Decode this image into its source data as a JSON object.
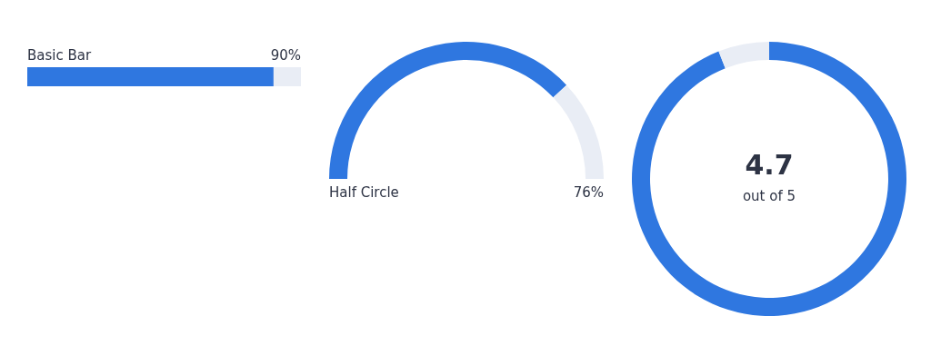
{
  "chart_data": [
    {
      "type": "bar",
      "orientation": "horizontal",
      "stacked": true,
      "categories": [
        "Basic Bar"
      ],
      "xlim": [
        0,
        100
      ],
      "tick_labels": false,
      "series": [
        {
          "color": "#2f77e0",
          "values": [
            90
          ],
          "value_labels": [
            "90%"
          ]
        },
        {
          "color": "#e9edf5",
          "values": [
            10
          ]
        }
      ]
    },
    {
      "type": "donut",
      "title": "Half Circle",
      "categories": [
        null,
        null
      ],
      "values": [
        76,
        24
      ],
      "colors": [
        "#2f77e0",
        "#e9edf5"
      ],
      "annotations": [
        "76%"
      ]
    },
    {
      "type": "donut",
      "categories": [
        null,
        null
      ],
      "values": [
        4.7,
        0.3
      ],
      "colors": [
        "#2f77e0",
        "#e9edf5"
      ],
      "value_labels": [
        "4.7",
        null
      ],
      "annotations": [
        "out of 5"
      ]
    }
  ]
}
